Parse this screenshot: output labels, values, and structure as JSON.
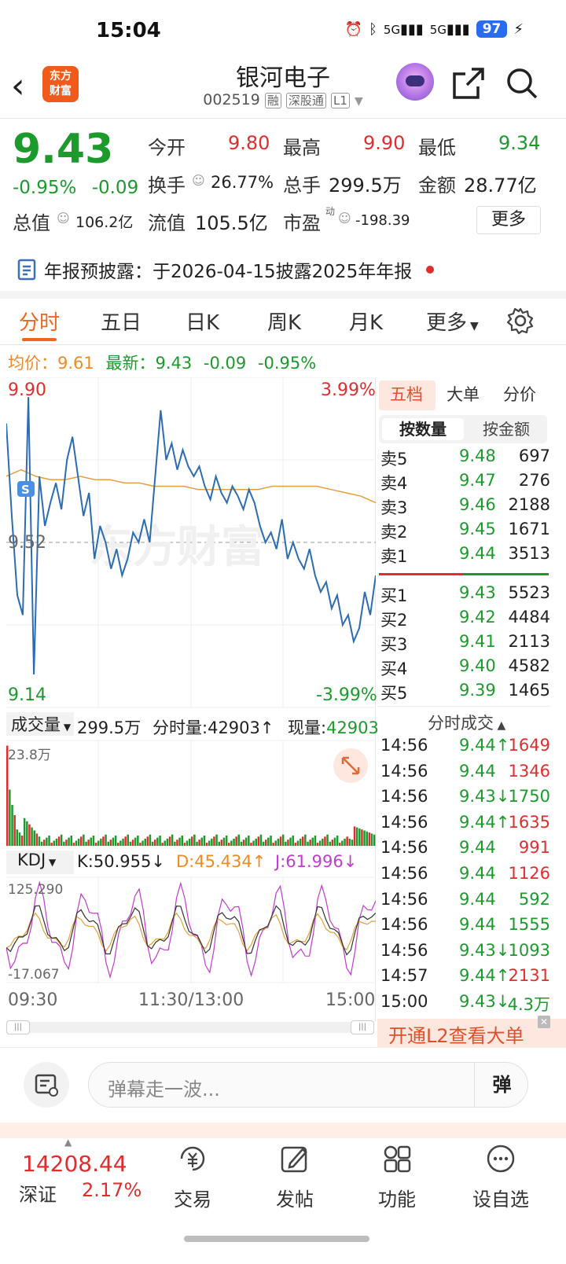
{
  "status_bar": {
    "time": "15:04",
    "net1": "5G",
    "net2": "5G",
    "battery": "97"
  },
  "header": {
    "brand_line1": "东方",
    "brand_line2": "财富",
    "stock_name": "银河电子",
    "stock_code": "002519",
    "tag_margin": "融",
    "tag_connect": "深股通",
    "tag_level": "L1"
  },
  "quote": {
    "price": "9.43",
    "change_pct": "-0.95%",
    "change_abs": "-0.09",
    "open_label": "今开",
    "open": "9.80",
    "high_label": "最高",
    "high": "9.90",
    "low_label": "最低",
    "low": "9.34",
    "turnover_label": "换手",
    "turnover": "26.77%",
    "volume_label": "总手",
    "volume": "299.5万",
    "amount_label": "金额",
    "amount": "28.77亿",
    "mktcap_label": "总值",
    "mktcap": "106.2亿",
    "float_label": "流值",
    "float_cap": "105.5亿",
    "pe_label": "市盈",
    "pe_sup": "动",
    "pe": "-198.39",
    "more_label": "更多"
  },
  "notice": {
    "text": "年报预披露：于2026-04-15披露2025年年报"
  },
  "tabs": [
    {
      "label": "分时",
      "active": true
    },
    {
      "label": "五日"
    },
    {
      "label": "日K"
    },
    {
      "label": "周K"
    },
    {
      "label": "月K"
    },
    {
      "label": "更多"
    }
  ],
  "avg_row": {
    "avg_label": "均价：",
    "avg": "9.61",
    "latest_label": "最新：",
    "latest": "9.43",
    "chg": "-0.09",
    "pct": "-0.95%"
  },
  "chart": {
    "y_high": "9.90",
    "y_mid": "9.52",
    "y_low": "9.14",
    "pct_high": "3.99%",
    "pct_low": "-3.99%",
    "watermark": "东方财富",
    "s_badge": "S",
    "vol_label": "成交量",
    "vol_total": "299.5万",
    "vol_min_label": "分时量:",
    "vol_min": "42903↑",
    "vol_now_label": "现量:",
    "vol_now": "42903",
    "vol_max": "23.8万",
    "kdj_label": "KDJ",
    "k": "K:50.955↓",
    "d": "D:45.434↑",
    "j": "J:61.996↓",
    "kdj_max": "125.290",
    "kdj_min": "-17.067",
    "time_start": "09:30",
    "time_mid": "11:30/13:00",
    "time_end": "15:00",
    "colors": {
      "price": "#2b6cb3",
      "avg": "#e3a03a",
      "up": "#e02d2d",
      "down": "#1c9a2c"
    }
  },
  "orderbook": {
    "tab_five": "五档",
    "tab_big": "大单",
    "tab_price": "分价",
    "sub_qty": "按数量",
    "sub_amt": "按金额",
    "asks": [
      {
        "label": "卖5",
        "price": "9.48",
        "qty": "697"
      },
      {
        "label": "卖4",
        "price": "9.47",
        "qty": "276"
      },
      {
        "label": "卖3",
        "price": "9.46",
        "qty": "2188"
      },
      {
        "label": "卖2",
        "price": "9.45",
        "qty": "1671"
      },
      {
        "label": "卖1",
        "price": "9.44",
        "qty": "3513"
      }
    ],
    "bids": [
      {
        "label": "买1",
        "price": "9.43",
        "qty": "5523"
      },
      {
        "label": "买2",
        "price": "9.42",
        "qty": "4484"
      },
      {
        "label": "买3",
        "price": "9.41",
        "qty": "2113"
      },
      {
        "label": "买4",
        "price": "9.40",
        "qty": "4582"
      },
      {
        "label": "买5",
        "price": "9.39",
        "qty": "1465"
      }
    ],
    "trades_title": "分时成交",
    "trades": [
      {
        "time": "14:56",
        "price": "9.44↑",
        "qty": "1649",
        "dir": "up"
      },
      {
        "time": "14:56",
        "price": "9.44",
        "qty": "1346",
        "dir": "up"
      },
      {
        "time": "14:56",
        "price": "9.43↓",
        "qty": "1750",
        "dir": "down"
      },
      {
        "time": "14:56",
        "price": "9.44↑",
        "qty": "1635",
        "dir": "up"
      },
      {
        "time": "14:56",
        "price": "9.44",
        "qty": "991",
        "dir": "up"
      },
      {
        "time": "14:56",
        "price": "9.44",
        "qty": "1126",
        "dir": "up"
      },
      {
        "time": "14:56",
        "price": "9.44",
        "qty": "592",
        "dir": "down"
      },
      {
        "time": "14:56",
        "price": "9.44",
        "qty": "1555",
        "dir": "down"
      },
      {
        "time": "14:56",
        "price": "9.43↓",
        "qty": "1093",
        "dir": "down"
      },
      {
        "time": "14:57",
        "price": "9.44↑",
        "qty": "2131",
        "dir": "up"
      },
      {
        "time": "15:00",
        "price": "9.43↓",
        "qty": "4.3万",
        "dir": "down"
      }
    ],
    "l2_banner": "开通L2查看大单"
  },
  "comment": {
    "placeholder": "弹幕走一波...",
    "danmu_label": "弹"
  },
  "bottom_nav": {
    "index_value": "14208.44",
    "index_name": "深证",
    "index_pct": "2.17%",
    "items": [
      "交易",
      "发帖",
      "功能",
      "设自选"
    ]
  }
}
